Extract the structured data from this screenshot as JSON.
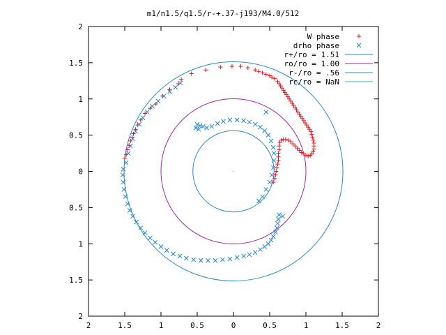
{
  "chart_data": {
    "type": "scatter",
    "title": "m1/n1.5/q1.5/r-+.37-j193/M4.0/512",
    "xlim": [
      -2,
      2
    ],
    "ylim": [
      -2,
      2
    ],
    "x_ticks": [
      -2,
      -1.5,
      -1,
      -0.5,
      0,
      0.5,
      1,
      1.5,
      2
    ],
    "y_ticks": [
      -2,
      -1.5,
      -1,
      -0.5,
      0,
      0.5,
      1,
      1.5,
      2
    ],
    "x_tick_labels": [
      "2",
      "1.5",
      "1",
      "0.5",
      "0",
      "0.5",
      "1",
      "1.5",
      "2"
    ],
    "y_tick_labels": [
      "2",
      "1.5",
      "1",
      "0.5",
      "0",
      "0.5",
      "1",
      "1.5",
      "2"
    ],
    "grid": false,
    "legend_position": "top-right",
    "series": [
      {
        "name": "W phase",
        "marker": "plus",
        "color": "#e8141c",
        "points": [
          [
            -1.5,
            0.18
          ],
          [
            -1.48,
            0.23
          ],
          [
            -1.46,
            0.3
          ],
          [
            -1.44,
            0.36
          ],
          [
            -1.42,
            0.42
          ],
          [
            -1.4,
            0.47
          ],
          [
            -1.38,
            0.52
          ],
          [
            -1.35,
            0.58
          ],
          [
            -1.32,
            0.64
          ],
          [
            -1.28,
            0.71
          ],
          [
            -1.22,
            0.8
          ],
          [
            -1.15,
            0.87
          ],
          [
            -1.07,
            0.93
          ],
          [
            -0.98,
            1.04
          ],
          [
            -0.88,
            1.13
          ],
          [
            -0.76,
            1.21
          ],
          [
            -0.72,
            1.27
          ],
          [
            -0.58,
            1.35
          ],
          [
            -0.38,
            1.4
          ],
          [
            -0.18,
            1.44
          ],
          [
            -0.02,
            1.45
          ],
          [
            0.1,
            1.45
          ],
          [
            0.2,
            1.43
          ],
          [
            0.3,
            1.4
          ],
          [
            0.35,
            1.38
          ],
          [
            0.4,
            1.36
          ],
          [
            0.45,
            1.34
          ],
          [
            0.5,
            1.32
          ],
          [
            0.53,
            1.3
          ],
          [
            0.57,
            1.28
          ],
          [
            0.61,
            1.24
          ],
          [
            0.63,
            1.21
          ],
          [
            0.65,
            1.18
          ],
          [
            0.67,
            1.15
          ],
          [
            0.69,
            1.12
          ],
          [
            0.71,
            1.09
          ],
          [
            0.73,
            1.06
          ],
          [
            0.75,
            1.03
          ],
          [
            0.77,
            1.0
          ],
          [
            0.79,
            0.97
          ],
          [
            0.81,
            0.94
          ],
          [
            0.83,
            0.91
          ],
          [
            0.85,
            0.88
          ],
          [
            0.87,
            0.85
          ],
          [
            0.89,
            0.82
          ],
          [
            0.91,
            0.79
          ],
          [
            0.93,
            0.76
          ],
          [
            0.95,
            0.73
          ],
          [
            0.97,
            0.7
          ],
          [
            0.99,
            0.67
          ],
          [
            1.01,
            0.64
          ],
          [
            1.03,
            0.61
          ],
          [
            1.05,
            0.58
          ],
          [
            1.07,
            0.55
          ],
          [
            1.08,
            0.51
          ],
          [
            1.09,
            0.47
          ],
          [
            1.1,
            0.43
          ],
          [
            1.11,
            0.39
          ],
          [
            1.11,
            0.35
          ],
          [
            1.11,
            0.31
          ],
          [
            1.1,
            0.27
          ],
          [
            1.08,
            0.24
          ],
          [
            1.06,
            0.22
          ],
          [
            1.03,
            0.21
          ],
          [
            1.0,
            0.22
          ],
          [
            0.97,
            0.24
          ],
          [
            0.94,
            0.26
          ],
          [
            0.91,
            0.29
          ],
          [
            0.88,
            0.32
          ],
          [
            0.85,
            0.35
          ],
          [
            0.82,
            0.38
          ],
          [
            0.79,
            0.41
          ],
          [
            0.76,
            0.43
          ],
          [
            0.72,
            0.44
          ],
          [
            0.69,
            0.44
          ],
          [
            0.66,
            0.43
          ],
          [
            0.64,
            0.4
          ],
          [
            0.63,
            0.35
          ],
          [
            0.63,
            0.3
          ],
          [
            0.62,
            0.25
          ],
          [
            0.62,
            0.2
          ],
          [
            0.62,
            0.15
          ],
          [
            0.61,
            0.1
          ],
          [
            0.6,
            0.05
          ],
          [
            0.59,
            0.0
          ],
          [
            0.58,
            -0.05
          ],
          [
            0.57,
            -0.1
          ],
          [
            0.55,
            -0.15
          ]
        ]
      },
      {
        "name": "drho phase",
        "marker": "x",
        "color": "#1a84d6",
        "points": [
          [
            -1.52,
            0.03
          ],
          [
            -1.53,
            -0.05
          ],
          [
            -1.52,
            -0.15
          ],
          [
            -1.51,
            -0.25
          ],
          [
            -1.49,
            -0.35
          ],
          [
            -1.46,
            -0.45
          ],
          [
            -1.43,
            -0.54
          ],
          [
            -1.39,
            -0.62
          ],
          [
            -1.34,
            -0.7
          ],
          [
            -1.28,
            -0.78
          ],
          [
            -1.22,
            -0.85
          ],
          [
            -1.15,
            -0.92
          ],
          [
            -1.08,
            -0.98
          ],
          [
            -1.0,
            -1.04
          ],
          [
            -0.92,
            -1.09
          ],
          [
            -0.83,
            -1.14
          ],
          [
            -0.74,
            -1.17
          ],
          [
            -0.65,
            -1.2
          ],
          [
            -0.55,
            -1.22
          ],
          [
            -0.45,
            -1.23
          ],
          [
            -0.35,
            -1.23
          ],
          [
            -0.25,
            -1.23
          ],
          [
            -0.15,
            -1.22
          ],
          [
            -0.05,
            -1.21
          ],
          [
            0.05,
            -1.19
          ],
          [
            0.14,
            -1.17
          ],
          [
            0.22,
            -1.15
          ],
          [
            0.3,
            -1.12
          ],
          [
            0.37,
            -1.08
          ],
          [
            0.43,
            -1.04
          ],
          [
            0.48,
            -1.0
          ],
          [
            0.52,
            -0.95
          ],
          [
            0.55,
            -0.9
          ],
          [
            0.58,
            -0.84
          ],
          [
            0.6,
            -0.78
          ],
          [
            0.61,
            -0.72
          ],
          [
            0.62,
            -0.66
          ],
          [
            0.63,
            -0.6
          ],
          [
            0.68,
            -0.62
          ],
          [
            0.35,
            -0.41
          ],
          [
            0.4,
            -0.35
          ],
          [
            0.45,
            -0.25
          ],
          [
            0.5,
            -0.15
          ],
          [
            0.53,
            -0.05
          ],
          [
            0.55,
            0.05
          ],
          [
            0.56,
            0.15
          ],
          [
            0.56,
            0.25
          ],
          [
            0.55,
            0.33
          ],
          [
            0.52,
            0.42
          ],
          [
            0.48,
            0.5
          ],
          [
            0.43,
            0.56
          ],
          [
            0.37,
            0.61
          ],
          [
            0.3,
            0.65
          ],
          [
            0.22,
            0.68
          ],
          [
            0.14,
            0.7
          ],
          [
            0.05,
            0.71
          ],
          [
            -0.05,
            0.71
          ],
          [
            -0.14,
            0.69
          ],
          [
            -0.22,
            0.66
          ],
          [
            -0.3,
            0.62
          ],
          [
            -0.37,
            0.6
          ],
          [
            -0.42,
            0.62
          ],
          [
            -0.46,
            0.63
          ],
          [
            -0.5,
            0.65
          ],
          [
            -0.52,
            0.6
          ],
          [
            -0.48,
            0.58
          ],
          [
            0.45,
            0.82
          ],
          [
            -1.48,
            0.12
          ],
          [
            -1.45,
            0.25
          ],
          [
            -1.42,
            0.35
          ],
          [
            -1.39,
            0.45
          ],
          [
            -1.35,
            0.55
          ],
          [
            -1.3,
            0.65
          ],
          [
            -1.25,
            0.74
          ],
          [
            -1.19,
            0.82
          ],
          [
            -1.12,
            0.9
          ],
          [
            -1.04,
            0.97
          ],
          [
            -0.96,
            1.04
          ],
          [
            -0.88,
            1.1
          ],
          [
            -0.8,
            1.16
          ],
          [
            -0.73,
            1.22
          ]
        ]
      },
      {
        "name": "r+/ro = 1.51",
        "type": "circle",
        "radius": 1.51,
        "color": "#2a87cc"
      },
      {
        "name": "ro/ro = 1.00",
        "type": "circle",
        "radius": 1.0,
        "color": "#a0279e"
      },
      {
        "name": "r-/ro = .56",
        "type": "circle",
        "radius": 0.56,
        "color": "#2a87cc"
      },
      {
        "name": "rc/ro = NaN",
        "type": "circle",
        "radius": null,
        "color": "#22b7c6"
      }
    ]
  }
}
